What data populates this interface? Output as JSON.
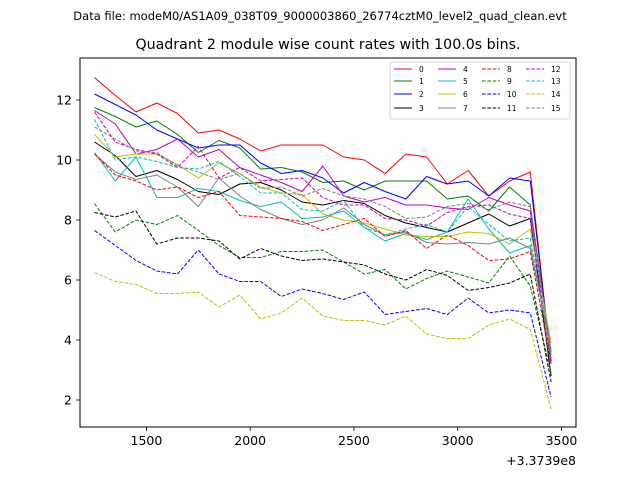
{
  "file_info": "Data file: modeM0/AS1A09_038T09_9000003860_26774cztM0_level2_quad_clean.evt",
  "chart_data": {
    "type": "line",
    "title": "Quadrant 2 module wise count rates with 100.0s bins.",
    "xlabel": "",
    "ylabel": "",
    "x_offset_label": "+3.3739e8",
    "xlim": [
      1180,
      3570
    ],
    "ylim": [
      1.1,
      13.4
    ],
    "xticks": [
      1500,
      2000,
      2500,
      3000,
      3500
    ],
    "yticks": [
      2,
      4,
      6,
      8,
      10,
      12
    ],
    "grid": false,
    "legend_position": "top-right",
    "x": [
      1250,
      1350,
      1450,
      1550,
      1650,
      1750,
      1850,
      1950,
      2050,
      2150,
      2250,
      2350,
      2450,
      2550,
      2650,
      2750,
      2850,
      2950,
      3050,
      3150,
      3250,
      3350,
      3450
    ],
    "series": [
      {
        "name": "0",
        "color": "#ff0000",
        "dash": "solid",
        "values": [
          12.75,
          12.15,
          11.6,
          11.9,
          11.55,
          10.9,
          11.0,
          10.7,
          10.3,
          10.5,
          10.5,
          10.5,
          10.1,
          10.0,
          9.55,
          10.2,
          10.1,
          9.2,
          9.65,
          8.8,
          9.3,
          9.6,
          3.2
        ]
      },
      {
        "name": "1",
        "color": "#008000",
        "dash": "solid",
        "values": [
          11.75,
          11.45,
          11.1,
          11.3,
          10.85,
          10.25,
          10.65,
          10.4,
          9.7,
          9.75,
          9.6,
          9.25,
          9.3,
          9.0,
          9.3,
          9.3,
          9.3,
          8.7,
          8.8,
          8.3,
          9.1,
          8.5,
          3.5
        ]
      },
      {
        "name": "2",
        "color": "#0000ff",
        "dash": "solid",
        "values": [
          12.2,
          11.85,
          11.5,
          11.0,
          10.7,
          10.4,
          10.5,
          10.5,
          9.9,
          9.55,
          9.65,
          9.4,
          8.9,
          9.25,
          8.95,
          8.7,
          9.45,
          9.2,
          9.3,
          8.8,
          9.4,
          9.3,
          3.3
        ]
      },
      {
        "name": "3",
        "color": "#000000",
        "dash": "solid",
        "values": [
          10.6,
          10.15,
          9.45,
          9.65,
          9.35,
          8.95,
          8.85,
          9.2,
          9.25,
          9.0,
          8.6,
          8.5,
          8.65,
          8.55,
          8.15,
          7.9,
          7.75,
          7.6,
          7.9,
          8.2,
          7.8,
          8.05,
          2.8
        ]
      },
      {
        "name": "4",
        "color": "#bf00bf",
        "dash": "solid",
        "values": [
          11.65,
          11.2,
          10.2,
          10.35,
          10.7,
          10.1,
          10.35,
          9.75,
          9.5,
          9.25,
          8.95,
          9.8,
          8.8,
          8.6,
          8.75,
          8.5,
          8.5,
          8.4,
          8.35,
          8.75,
          8.5,
          8.3,
          3.6
        ]
      },
      {
        "name": "5",
        "color": "#00bfbf",
        "dash": "solid",
        "values": [
          10.25,
          9.3,
          10.1,
          8.75,
          8.75,
          9.05,
          8.95,
          8.65,
          8.45,
          8.6,
          8.05,
          8.1,
          8.3,
          7.75,
          7.3,
          7.55,
          7.35,
          7.6,
          8.7,
          7.7,
          6.9,
          7.15,
          3.6
        ]
      },
      {
        "name": "6",
        "color": "#bfbf00",
        "dash": "solid",
        "values": [
          10.85,
          10.1,
          10.2,
          10.2,
          9.85,
          9.4,
          9.9,
          9.55,
          9.1,
          8.9,
          8.85,
          8.2,
          8.0,
          7.9,
          7.7,
          7.5,
          7.45,
          7.45,
          7.6,
          7.55,
          7.2,
          7.7,
          3.9
        ]
      },
      {
        "name": "7",
        "color": "#808080",
        "dash": "solid",
        "values": [
          10.2,
          9.6,
          9.35,
          9.5,
          9.1,
          8.45,
          9.4,
          8.8,
          8.35,
          8.05,
          7.85,
          8.0,
          8.4,
          7.85,
          7.5,
          7.6,
          7.25,
          7.2,
          7.25,
          7.2,
          7.4,
          7.05,
          3.7
        ]
      },
      {
        "name": "8",
        "color": "#ff0000",
        "dash": "dashed",
        "values": [
          10.2,
          9.5,
          9.3,
          9.0,
          9.1,
          8.75,
          8.95,
          8.15,
          8.1,
          8.05,
          7.95,
          7.65,
          7.85,
          8.05,
          7.45,
          7.65,
          7.05,
          7.5,
          7.15,
          6.65,
          6.7,
          6.95,
          3.2
        ]
      },
      {
        "name": "9",
        "color": "#008000",
        "dash": "dashed",
        "values": [
          8.55,
          7.6,
          8.0,
          7.85,
          8.15,
          7.65,
          7.15,
          6.75,
          6.75,
          6.95,
          6.95,
          7.0,
          6.6,
          6.2,
          6.35,
          5.7,
          6.05,
          6.3,
          6.1,
          5.9,
          6.8,
          5.8,
          2.9
        ]
      },
      {
        "name": "10",
        "color": "#0000ff",
        "dash": "dashed",
        "values": [
          7.65,
          7.15,
          6.65,
          6.3,
          6.2,
          7.0,
          6.2,
          5.95,
          5.95,
          5.45,
          5.7,
          5.55,
          5.35,
          5.6,
          4.85,
          4.95,
          5.05,
          4.85,
          5.4,
          4.9,
          5.0,
          4.9,
          2.1
        ]
      },
      {
        "name": "11",
        "color": "#000000",
        "dash": "dashed",
        "values": [
          8.25,
          8.1,
          8.3,
          7.2,
          7.4,
          7.4,
          7.3,
          6.7,
          7.05,
          6.8,
          6.65,
          6.7,
          6.6,
          6.5,
          6.2,
          6.0,
          6.35,
          6.15,
          5.65,
          5.75,
          5.9,
          6.2,
          2.6
        ]
      },
      {
        "name": "12",
        "color": "#bf00bf",
        "dash": "dashed",
        "values": [
          11.6,
          10.6,
          10.35,
          10.2,
          9.75,
          10.45,
          9.4,
          9.75,
          9.3,
          9.35,
          9.4,
          8.75,
          8.5,
          8.5,
          8.05,
          8.0,
          7.8,
          8.25,
          8.45,
          8.5,
          8.2,
          8.05,
          3.2
        ]
      },
      {
        "name": "13",
        "color": "#00bfbf",
        "dash": "dashed",
        "values": [
          11.35,
          10.0,
          10.1,
          9.95,
          9.75,
          9.7,
          9.95,
          9.45,
          8.9,
          8.9,
          8.35,
          8.3,
          8.65,
          7.75,
          7.5,
          7.7,
          7.85,
          7.6,
          8.45,
          7.85,
          7.3,
          7.4,
          3.5
        ]
      },
      {
        "name": "14",
        "color": "#bfbf00",
        "dash": "dashed",
        "values": [
          6.25,
          5.95,
          5.85,
          5.55,
          5.55,
          5.6,
          5.1,
          5.5,
          4.7,
          4.9,
          5.4,
          4.8,
          4.65,
          4.65,
          4.5,
          4.8,
          4.2,
          4.05,
          4.05,
          4.5,
          4.7,
          4.35,
          1.7
        ]
      },
      {
        "name": "15",
        "color": "#808080",
        "dash": "dashed",
        "values": [
          11.1,
          10.7,
          10.3,
          10.25,
          9.8,
          9.6,
          9.35,
          9.55,
          9.05,
          9.1,
          8.8,
          9.05,
          8.8,
          8.7,
          8.45,
          8.05,
          8.1,
          8.45,
          8.55,
          8.35,
          8.6,
          8.45,
          3.4
        ]
      }
    ]
  }
}
